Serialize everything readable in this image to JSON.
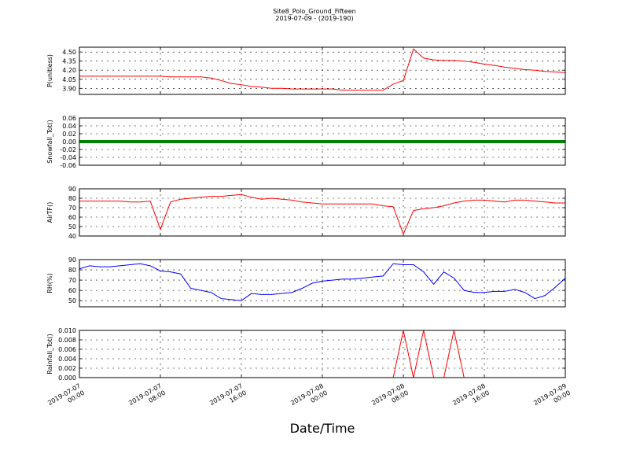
{
  "title": "Site8_Polo_Ground_Fifteen",
  "subtitle": "2019-07-09 - (2019-190)",
  "chart_data": [
    {
      "type": "line",
      "ylabel": "P(unitless)",
      "color": "#ff0000",
      "grid": true,
      "xlim": [
        "2019-07-07 00:00",
        "2019-07-09 00:00"
      ],
      "xticks": [
        "2019-07-07 00:00",
        "2019-07-07 08:00",
        "2019-07-07 16:00",
        "2019-07-08 00:00",
        "2019-07-08 08:00",
        "2019-07-08 16:00",
        "2019-07-09 00:00"
      ],
      "ylim": [
        3.8,
        4.58
      ],
      "yticks": [
        {
          "value": 3.9,
          "label": "3.90"
        },
        {
          "value": 4.05,
          "label": "4.05"
        },
        {
          "value": 4.2,
          "label": "4.20"
        },
        {
          "value": 4.35,
          "label": "4.35"
        },
        {
          "value": 4.5,
          "label": "4.50"
        }
      ],
      "x": [
        "2019-07-07 00:00",
        "2019-07-07 01:00",
        "2019-07-07 02:00",
        "2019-07-07 03:00",
        "2019-07-07 04:00",
        "2019-07-07 05:00",
        "2019-07-07 06:00",
        "2019-07-07 07:00",
        "2019-07-07 08:00",
        "2019-07-07 09:00",
        "2019-07-07 10:00",
        "2019-07-07 11:00",
        "2019-07-07 12:00",
        "2019-07-07 13:00",
        "2019-07-07 14:00",
        "2019-07-07 15:00",
        "2019-07-07 16:00",
        "2019-07-07 17:00",
        "2019-07-07 18:00",
        "2019-07-07 19:00",
        "2019-07-07 20:00",
        "2019-07-07 21:00",
        "2019-07-07 22:00",
        "2019-07-07 23:00",
        "2019-07-08 00:00",
        "2019-07-08 01:00",
        "2019-07-08 02:00",
        "2019-07-08 03:00",
        "2019-07-08 04:00",
        "2019-07-08 05:00",
        "2019-07-08 06:00",
        "2019-07-08 07:00",
        "2019-07-08 08:00",
        "2019-07-08 09:00",
        "2019-07-08 10:00",
        "2019-07-08 11:00",
        "2019-07-08 12:00",
        "2019-07-08 13:00",
        "2019-07-08 14:00",
        "2019-07-08 15:00",
        "2019-07-08 16:00",
        "2019-07-08 17:00",
        "2019-07-08 18:00",
        "2019-07-08 19:00",
        "2019-07-08 20:00",
        "2019-07-08 21:00",
        "2019-07-08 22:00",
        "2019-07-08 23:00",
        "2019-07-09 00:00"
      ],
      "values": [
        4.1,
        4.1,
        4.1,
        4.1,
        4.1,
        4.1,
        4.1,
        4.1,
        4.1,
        4.09,
        4.09,
        4.09,
        4.09,
        4.07,
        4.03,
        3.98,
        3.96,
        3.93,
        3.92,
        3.9,
        3.9,
        3.89,
        3.89,
        3.89,
        3.89,
        3.89,
        3.87,
        3.87,
        3.87,
        3.87,
        3.87,
        3.97,
        4.03,
        4.55,
        4.4,
        4.37,
        4.36,
        4.36,
        4.35,
        4.33,
        4.3,
        4.28,
        4.25,
        4.23,
        4.21,
        4.2,
        4.18,
        4.17,
        4.16
      ]
    },
    {
      "type": "line",
      "ylabel": "Snowfall_Tot()",
      "color": "#008000",
      "grid": true,
      "xlim": [
        "2019-07-07 00:00",
        "2019-07-09 00:00"
      ],
      "xticks": [
        "2019-07-07 00:00",
        "2019-07-07 08:00",
        "2019-07-07 16:00",
        "2019-07-08 00:00",
        "2019-07-08 08:00",
        "2019-07-08 16:00",
        "2019-07-09 00:00"
      ],
      "ylim": [
        -0.06,
        0.06
      ],
      "yticks": [
        {
          "value": -0.06,
          "label": "-0.06"
        },
        {
          "value": -0.04,
          "label": "-0.04"
        },
        {
          "value": -0.02,
          "label": "-0.02"
        },
        {
          "value": 0,
          "label": "0.00"
        },
        {
          "value": 0.02,
          "label": "0.02"
        },
        {
          "value": 0.04,
          "label": "0.04"
        },
        {
          "value": 0.06,
          "label": "0.06"
        }
      ],
      "x": [
        "2019-07-07 00:00",
        "2019-07-07 01:00",
        "2019-07-07 02:00",
        "2019-07-07 03:00",
        "2019-07-07 04:00",
        "2019-07-07 05:00",
        "2019-07-07 06:00",
        "2019-07-07 07:00",
        "2019-07-07 08:00",
        "2019-07-07 09:00",
        "2019-07-07 10:00",
        "2019-07-07 11:00",
        "2019-07-07 12:00",
        "2019-07-07 13:00",
        "2019-07-07 14:00",
        "2019-07-07 15:00",
        "2019-07-07 16:00",
        "2019-07-07 17:00",
        "2019-07-07 18:00",
        "2019-07-07 19:00",
        "2019-07-07 20:00",
        "2019-07-07 21:00",
        "2019-07-07 22:00",
        "2019-07-07 23:00",
        "2019-07-08 00:00",
        "2019-07-08 01:00",
        "2019-07-08 02:00",
        "2019-07-08 03:00",
        "2019-07-08 04:00",
        "2019-07-08 05:00",
        "2019-07-08 06:00",
        "2019-07-08 07:00",
        "2019-07-08 08:00",
        "2019-07-08 09:00",
        "2019-07-08 10:00",
        "2019-07-08 11:00",
        "2019-07-08 12:00",
        "2019-07-08 13:00",
        "2019-07-08 14:00",
        "2019-07-08 15:00",
        "2019-07-08 16:00",
        "2019-07-08 17:00",
        "2019-07-08 18:00",
        "2019-07-08 19:00",
        "2019-07-08 20:00",
        "2019-07-08 21:00",
        "2019-07-08 22:00",
        "2019-07-08 23:00",
        "2019-07-09 00:00"
      ],
      "values": [
        0,
        0,
        0,
        0,
        0,
        0,
        0,
        0,
        0,
        0,
        0,
        0,
        0,
        0,
        0,
        0,
        0,
        0,
        0,
        0,
        0,
        0,
        0,
        0,
        0,
        0,
        0,
        0,
        0,
        0,
        0,
        0,
        0,
        0,
        0,
        0,
        0,
        0,
        0,
        0,
        0,
        0,
        0,
        0,
        0,
        0,
        0,
        0,
        0
      ]
    },
    {
      "type": "line",
      "ylabel": "AirTF()",
      "color": "#ff0000",
      "grid": true,
      "xlim": [
        "2019-07-07 00:00",
        "2019-07-09 00:00"
      ],
      "xticks": [
        "2019-07-07 00:00",
        "2019-07-07 08:00",
        "2019-07-07 16:00",
        "2019-07-08 00:00",
        "2019-07-08 08:00",
        "2019-07-08 16:00",
        "2019-07-09 00:00"
      ],
      "ylim": [
        40,
        90
      ],
      "yticks": [
        40,
        50,
        60,
        70,
        80,
        90
      ],
      "x": [
        "2019-07-07 00:00",
        "2019-07-07 01:00",
        "2019-07-07 02:00",
        "2019-07-07 03:00",
        "2019-07-07 04:00",
        "2019-07-07 05:00",
        "2019-07-07 06:00",
        "2019-07-07 07:00",
        "2019-07-07 08:00",
        "2019-07-07 09:00",
        "2019-07-07 10:00",
        "2019-07-07 11:00",
        "2019-07-07 12:00",
        "2019-07-07 13:00",
        "2019-07-07 14:00",
        "2019-07-07 15:00",
        "2019-07-07 16:00",
        "2019-07-07 17:00",
        "2019-07-07 18:00",
        "2019-07-07 19:00",
        "2019-07-07 20:00",
        "2019-07-07 21:00",
        "2019-07-07 22:00",
        "2019-07-07 23:00",
        "2019-07-08 00:00",
        "2019-07-08 01:00",
        "2019-07-08 02:00",
        "2019-07-08 03:00",
        "2019-07-08 04:00",
        "2019-07-08 05:00",
        "2019-07-08 06:00",
        "2019-07-08 07:00",
        "2019-07-08 08:00",
        "2019-07-08 09:00",
        "2019-07-08 10:00",
        "2019-07-08 11:00",
        "2019-07-08 12:00",
        "2019-07-08 13:00",
        "2019-07-08 14:00",
        "2019-07-08 15:00",
        "2019-07-08 16:00",
        "2019-07-08 17:00",
        "2019-07-08 18:00",
        "2019-07-08 19:00",
        "2019-07-08 20:00",
        "2019-07-08 21:00",
        "2019-07-08 22:00",
        "2019-07-08 23:00",
        "2019-07-09 00:00"
      ],
      "values": [
        77,
        77,
        77,
        77,
        77,
        76,
        76,
        77,
        47,
        76,
        79,
        80,
        81,
        82,
        82,
        83,
        84,
        81,
        79,
        80,
        79,
        78,
        76,
        75,
        74,
        74,
        74,
        74,
        74,
        74,
        72,
        71,
        42,
        67,
        69,
        70,
        72,
        75,
        77,
        78,
        78,
        77,
        76,
        78,
        78,
        77,
        76,
        75,
        75
      ]
    },
    {
      "type": "line",
      "ylabel": "RH(%)",
      "color": "#0000ff",
      "grid": true,
      "xlim": [
        "2019-07-07 00:00",
        "2019-07-09 00:00"
      ],
      "xticks": [
        "2019-07-07 00:00",
        "2019-07-07 08:00",
        "2019-07-07 16:00",
        "2019-07-08 00:00",
        "2019-07-08 08:00",
        "2019-07-08 16:00",
        "2019-07-09 00:00"
      ],
      "ylim": [
        44,
        90
      ],
      "yticks": [
        50,
        60,
        70,
        80,
        90
      ],
      "x": [
        "2019-07-07 00:00",
        "2019-07-07 01:00",
        "2019-07-07 02:00",
        "2019-07-07 03:00",
        "2019-07-07 04:00",
        "2019-07-07 05:00",
        "2019-07-07 06:00",
        "2019-07-07 07:00",
        "2019-07-07 08:00",
        "2019-07-07 09:00",
        "2019-07-07 10:00",
        "2019-07-07 11:00",
        "2019-07-07 12:00",
        "2019-07-07 13:00",
        "2019-07-07 14:00",
        "2019-07-07 15:00",
        "2019-07-07 16:00",
        "2019-07-07 17:00",
        "2019-07-07 18:00",
        "2019-07-07 19:00",
        "2019-07-07 20:00",
        "2019-07-07 21:00",
        "2019-07-07 22:00",
        "2019-07-07 23:00",
        "2019-07-08 00:00",
        "2019-07-08 01:00",
        "2019-07-08 02:00",
        "2019-07-08 03:00",
        "2019-07-08 04:00",
        "2019-07-08 05:00",
        "2019-07-08 06:00",
        "2019-07-08 07:00",
        "2019-07-08 08:00",
        "2019-07-08 09:00",
        "2019-07-08 10:00",
        "2019-07-08 11:00",
        "2019-07-08 12:00",
        "2019-07-08 13:00",
        "2019-07-08 14:00",
        "2019-07-08 15:00",
        "2019-07-08 16:00",
        "2019-07-08 17:00",
        "2019-07-08 18:00",
        "2019-07-08 19:00",
        "2019-07-08 20:00",
        "2019-07-08 21:00",
        "2019-07-08 22:00",
        "2019-07-08 23:00",
        "2019-07-09 00:00"
      ],
      "values": [
        81,
        84,
        83,
        83,
        84,
        85,
        86,
        84,
        79,
        78,
        76,
        62,
        60,
        58,
        52,
        51,
        50,
        57,
        56,
        56,
        57,
        58,
        62,
        67,
        69,
        70,
        71,
        71,
        72,
        73,
        74,
        86,
        85,
        85,
        78,
        66,
        78,
        72,
        60,
        58,
        58,
        59,
        59,
        61,
        58,
        52,
        55,
        63,
        72
      ]
    },
    {
      "type": "line",
      "ylabel": "Rainfall_Tot()",
      "xlabel": "Date/Time",
      "color": "#ff0000",
      "grid": true,
      "xlim": [
        "2019-07-07 00:00",
        "2019-07-09 00:00"
      ],
      "xticks": [
        "2019-07-07 00:00",
        "2019-07-07 08:00",
        "2019-07-07 16:00",
        "2019-07-08 00:00",
        "2019-07-08 08:00",
        "2019-07-08 16:00",
        "2019-07-09 00:00"
      ],
      "ylim": [
        0,
        0.01
      ],
      "yticks": [
        {
          "value": 0,
          "label": "0.000"
        },
        {
          "value": 0.002,
          "label": "0.002"
        },
        {
          "value": 0.004,
          "label": "0.004"
        },
        {
          "value": 0.006,
          "label": "0.006"
        },
        {
          "value": 0.008,
          "label": "0.008"
        },
        {
          "value": 0.01,
          "label": "0.010"
        }
      ],
      "x": [
        "2019-07-07 00:00",
        "2019-07-07 01:00",
        "2019-07-07 02:00",
        "2019-07-07 03:00",
        "2019-07-07 04:00",
        "2019-07-07 05:00",
        "2019-07-07 06:00",
        "2019-07-07 07:00",
        "2019-07-07 08:00",
        "2019-07-07 09:00",
        "2019-07-07 10:00",
        "2019-07-07 11:00",
        "2019-07-07 12:00",
        "2019-07-07 13:00",
        "2019-07-07 14:00",
        "2019-07-07 15:00",
        "2019-07-07 16:00",
        "2019-07-07 17:00",
        "2019-07-07 18:00",
        "2019-07-07 19:00",
        "2019-07-07 20:00",
        "2019-07-07 21:00",
        "2019-07-07 22:00",
        "2019-07-07 23:00",
        "2019-07-08 00:00",
        "2019-07-08 01:00",
        "2019-07-08 02:00",
        "2019-07-08 03:00",
        "2019-07-08 04:00",
        "2019-07-08 05:00",
        "2019-07-08 06:00",
        "2019-07-08 07:00",
        "2019-07-08 08:00",
        "2019-07-08 09:00",
        "2019-07-08 10:00",
        "2019-07-08 11:00",
        "2019-07-08 12:00",
        "2019-07-08 13:00",
        "2019-07-08 14:00",
        "2019-07-08 15:00",
        "2019-07-08 16:00",
        "2019-07-08 17:00",
        "2019-07-08 18:00",
        "2019-07-08 19:00",
        "2019-07-08 20:00",
        "2019-07-08 21:00",
        "2019-07-08 22:00",
        "2019-07-08 23:00",
        "2019-07-09 00:00"
      ],
      "values": [
        0,
        0,
        0,
        0,
        0,
        0,
        0,
        0,
        0,
        0,
        0,
        0,
        0,
        0,
        0,
        0,
        0,
        0,
        0,
        0,
        0,
        0,
        0,
        0,
        0,
        0,
        0,
        0,
        0,
        0,
        0,
        0,
        0.01,
        0,
        0.01,
        0,
        0,
        0.01,
        0,
        0,
        0,
        0,
        0,
        0,
        0,
        0,
        0,
        0,
        0
      ]
    }
  ]
}
